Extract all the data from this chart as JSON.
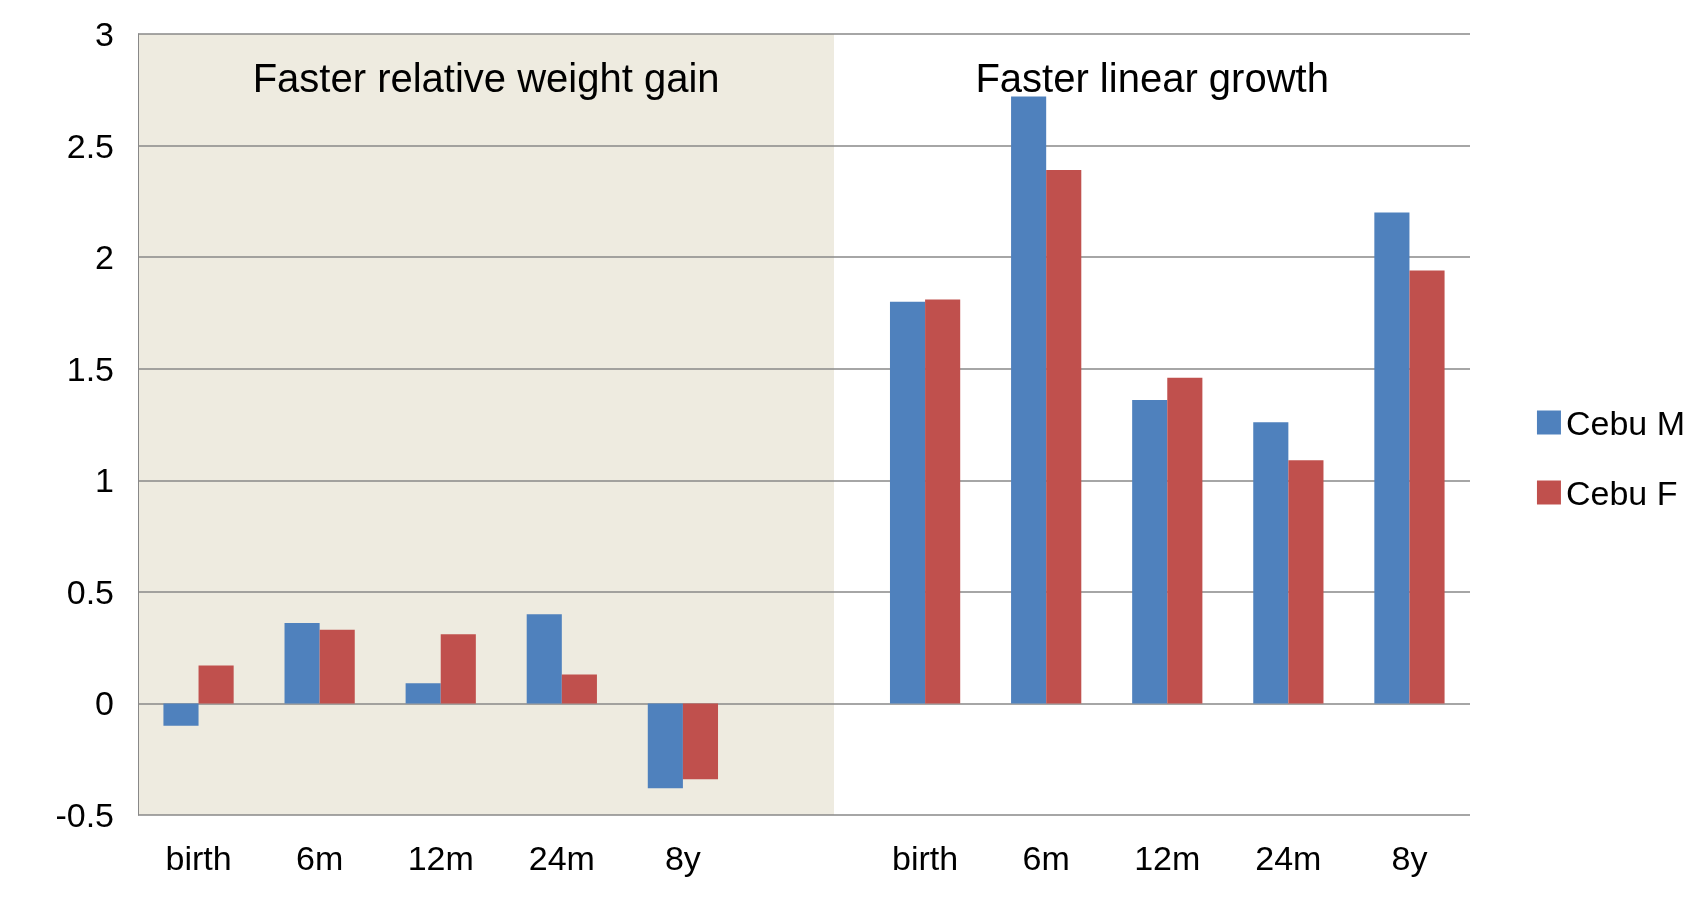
{
  "chart_data": {
    "type": "bar",
    "categories": [
      "birth",
      "6m",
      "12m",
      "24m",
      "8y",
      null,
      "birth",
      "6m",
      "12m",
      "24m",
      "8y"
    ],
    "series": [
      {
        "name": "Cebu M",
        "color": "#4f81bd",
        "values": [
          -0.1,
          0.36,
          0.09,
          0.4,
          -0.38,
          null,
          1.8,
          2.72,
          1.36,
          1.26,
          2.2
        ]
      },
      {
        "name": "Cebu F",
        "color": "#c0504d",
        "values": [
          0.17,
          0.33,
          0.31,
          0.13,
          -0.34,
          null,
          1.81,
          2.39,
          1.46,
          1.09,
          1.94
        ]
      }
    ],
    "ylim": [
      -0.5,
      3
    ],
    "yticks": [
      -0.5,
      0,
      0.5,
      1,
      1.5,
      2,
      2.5,
      3
    ],
    "grid": "y",
    "legend": "right",
    "annotations": [
      "Faster relative weight gain",
      "Faster linear growth"
    ]
  }
}
